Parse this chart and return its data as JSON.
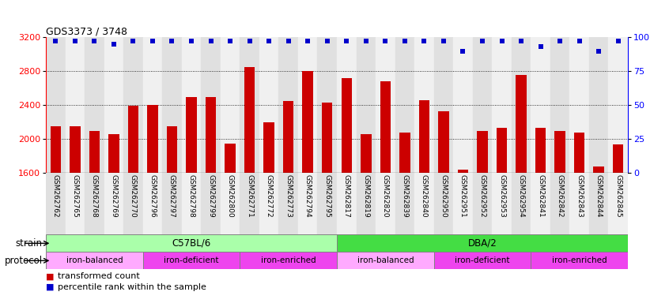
{
  "title": "GDS3373 / 3748",
  "samples": [
    "GSM262762",
    "GSM262765",
    "GSM262768",
    "GSM262769",
    "GSM262770",
    "GSM262796",
    "GSM262797",
    "GSM262798",
    "GSM262799",
    "GSM262800",
    "GSM262771",
    "GSM262772",
    "GSM262773",
    "GSM262794",
    "GSM262795",
    "GSM262817",
    "GSM262819",
    "GSM262820",
    "GSM262839",
    "GSM262840",
    "GSM262950",
    "GSM262951",
    "GSM262952",
    "GSM262953",
    "GSM262954",
    "GSM262841",
    "GSM262842",
    "GSM262843",
    "GSM262844",
    "GSM262845"
  ],
  "bar_values": [
    2150,
    2150,
    2100,
    2060,
    2390,
    2400,
    2150,
    2500,
    2500,
    1950,
    2850,
    2200,
    2450,
    2800,
    2430,
    2720,
    2060,
    2680,
    2080,
    2460,
    2330,
    1640,
    2100,
    2130,
    2760,
    2130,
    2100,
    2080,
    1680,
    1940
  ],
  "percentile_values": [
    97,
    97,
    97,
    95,
    97,
    97,
    97,
    97,
    97,
    97,
    97,
    97,
    97,
    97,
    97,
    97,
    97,
    97,
    97,
    97,
    97,
    90,
    97,
    97,
    97,
    93,
    97,
    97,
    90,
    97
  ],
  "bar_color": "#cc0000",
  "percentile_color": "#0000cc",
  "ylim_left": [
    1600,
    3200
  ],
  "ylim_right": [
    0,
    100
  ],
  "yticks_left": [
    1600,
    2000,
    2400,
    2800,
    3200
  ],
  "yticks_right": [
    0,
    25,
    50,
    75,
    100
  ],
  "grid_values": [
    2000,
    2400,
    2800
  ],
  "strain_groups": [
    {
      "label": "C57BL/6",
      "start": 0,
      "end": 15,
      "color": "#aaffaa"
    },
    {
      "label": "DBA/2",
      "start": 15,
      "end": 30,
      "color": "#44dd44"
    }
  ],
  "protocol_groups": [
    {
      "label": "iron-balanced",
      "start": 0,
      "end": 5,
      "color": "#ffaaff"
    },
    {
      "label": "iron-deficient",
      "start": 5,
      "end": 10,
      "color": "#ee44ee"
    },
    {
      "label": "iron-enriched",
      "start": 10,
      "end": 15,
      "color": "#ee44ee"
    },
    {
      "label": "iron-balanced",
      "start": 15,
      "end": 20,
      "color": "#ffaaff"
    },
    {
      "label": "iron-deficient",
      "start": 20,
      "end": 25,
      "color": "#ee44ee"
    },
    {
      "label": "iron-enriched",
      "start": 25,
      "end": 30,
      "color": "#ee44ee"
    }
  ],
  "proto_colors": {
    "iron-balanced": "#ffaaff",
    "iron-deficient": "#ee44ee",
    "iron-enriched": "#ee44ee"
  },
  "legend_items": [
    {
      "label": "transformed count",
      "color": "#cc0000"
    },
    {
      "label": "percentile rank within the sample",
      "color": "#0000cc"
    }
  ],
  "bg_color": "#ffffff",
  "col_colors": [
    "#e0e0e0",
    "#f0f0f0"
  ]
}
